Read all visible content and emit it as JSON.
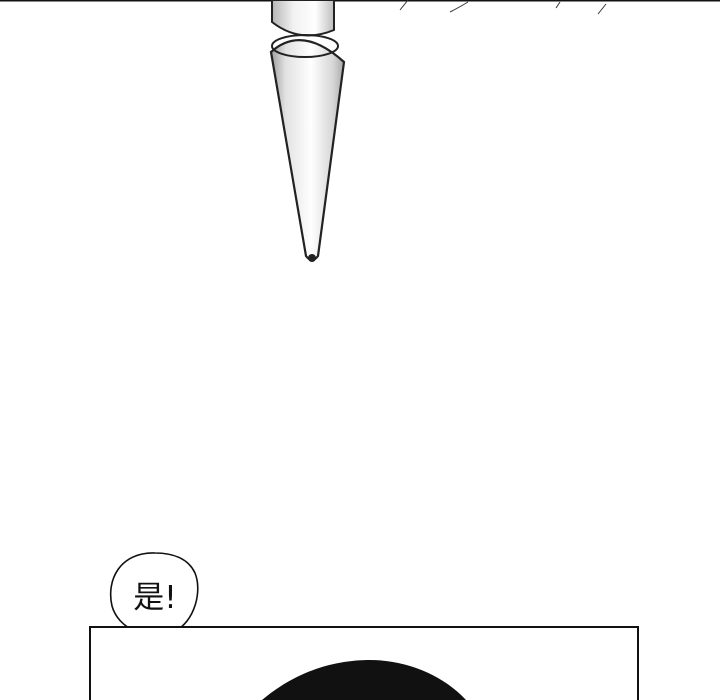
{
  "speech_bubble": {
    "text": "是!"
  },
  "colors": {
    "ink": "#111111",
    "paper": "#ffffff"
  }
}
